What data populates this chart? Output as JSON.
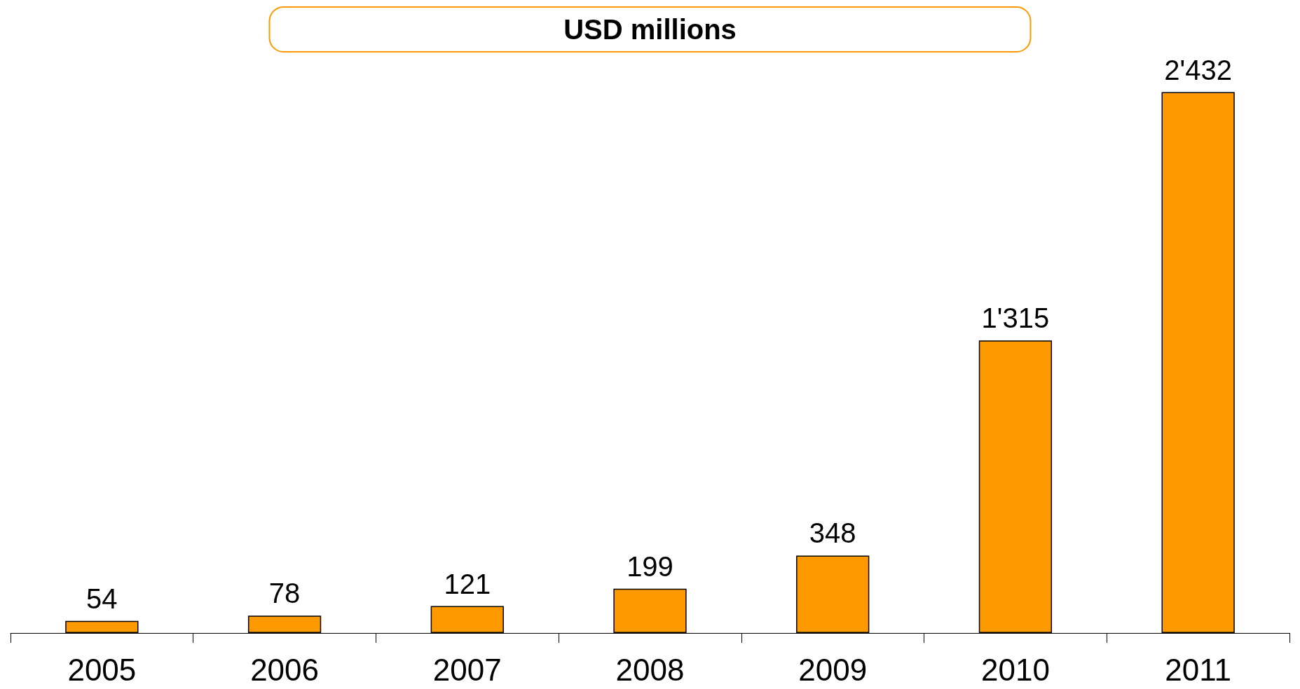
{
  "chart_data": {
    "type": "bar",
    "title": "USD millions",
    "categories": [
      "2005",
      "2006",
      "2007",
      "2008",
      "2009",
      "2010",
      "2011"
    ],
    "values": [
      54,
      78,
      121,
      199,
      348,
      1315,
      2432
    ],
    "value_labels": [
      "54",
      "78",
      "121",
      "199",
      "348",
      "1'315",
      "2'432"
    ],
    "color": "#ff9900",
    "grid": false
  }
}
